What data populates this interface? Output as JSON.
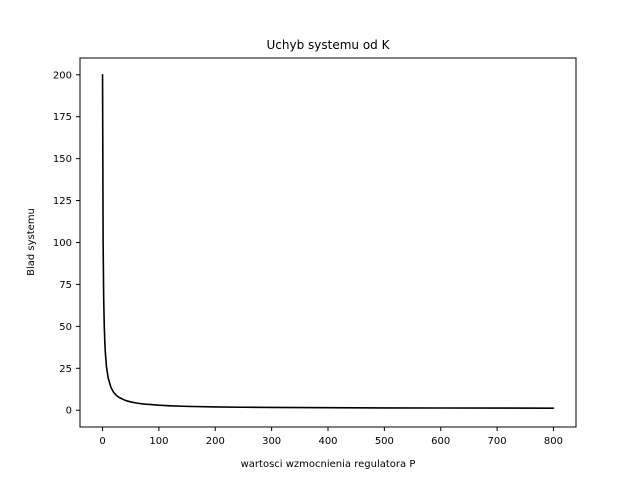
{
  "chart_data": {
    "type": "line",
    "title": "Uchyb systemu od K",
    "xlabel": "wartosci wzmocnienia regulatora P",
    "ylabel": "Blad systemu",
    "xlim": [
      -40,
      840
    ],
    "ylim": [
      -10,
      210
    ],
    "xticks": [
      0,
      100,
      200,
      300,
      400,
      500,
      600,
      700,
      800
    ],
    "yticks": [
      0,
      25,
      50,
      75,
      100,
      125,
      150,
      175,
      200
    ],
    "grid": false,
    "legend": "none",
    "series": [
      {
        "color": "#000000",
        "x": [
          0,
          1,
          2,
          3,
          4,
          5,
          7,
          10,
          15,
          20,
          25,
          30,
          40,
          50,
          60,
          70,
          80,
          100,
          120,
          150,
          200,
          250,
          300,
          400,
          500,
          600,
          700,
          800
        ],
        "y": [
          200,
          100.5,
          67.3,
          50.75,
          40.8,
          34.2,
          25.9,
          19.2,
          13.5,
          10.5,
          8.7,
          7.5,
          5.9,
          4.95,
          4.3,
          3.85,
          3.5,
          3.0,
          2.65,
          2.3,
          1.98,
          1.78,
          1.65,
          1.49,
          1.39,
          1.32,
          1.28,
          1.24
        ]
      }
    ]
  }
}
